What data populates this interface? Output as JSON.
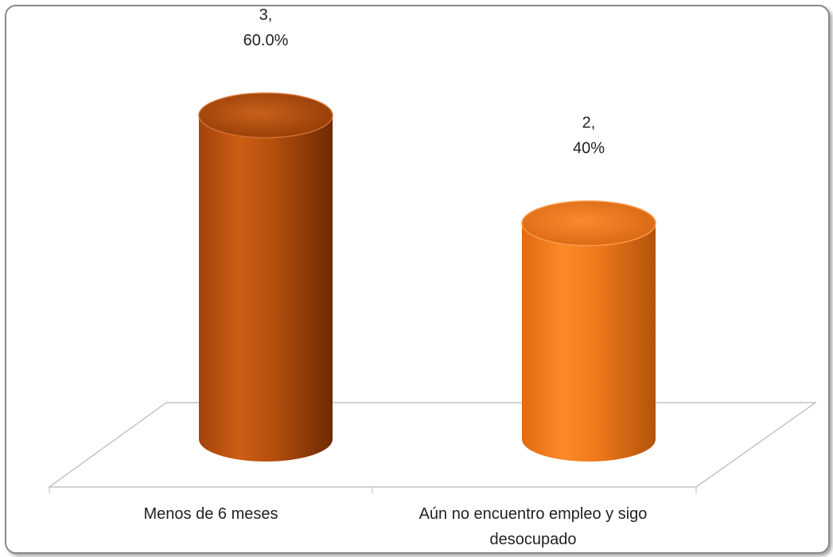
{
  "chart_data": {
    "type": "bar",
    "style": "3d-cylinder",
    "categories": [
      "Menos de 6 meses",
      "Aún no encuentro empleo y sigo desocupado"
    ],
    "category_label_lines": [
      [
        "Menos de 6 meses"
      ],
      [
        "Aún no encuentro empleo y sigo",
        "desocupado"
      ]
    ],
    "values": [
      3,
      2
    ],
    "data_labels": [
      {
        "line1": "3,",
        "line2": "60.0%"
      },
      {
        "line1": "2,",
        "line2": "40%"
      }
    ],
    "colors": [
      "#c75a10",
      "#f07a1c"
    ],
    "ylim": [
      0,
      3
    ],
    "grid": false,
    "legend": "none"
  }
}
